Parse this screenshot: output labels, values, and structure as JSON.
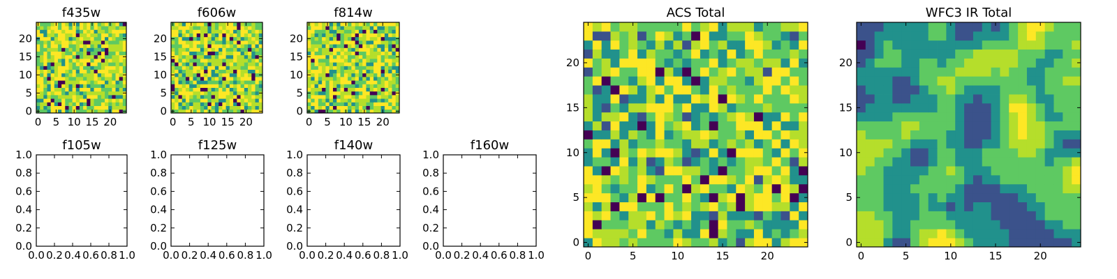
{
  "colormap": [
    "#440154",
    "#3b528b",
    "#21918c",
    "#5ec962",
    "#b5de2b",
    "#fde725"
  ],
  "chart_data": [
    {
      "type": "heatmap",
      "title": "f435w",
      "grid_size": 25,
      "xlim": [
        -0.5,
        24.5
      ],
      "ylim": [
        -0.5,
        24.5
      ],
      "xticks": [
        "0",
        "5",
        "10",
        "15",
        "20"
      ],
      "yticks": [
        "0",
        "5",
        "10",
        "15",
        "20"
      ],
      "pattern": "noisy-bright",
      "seed": 11
    },
    {
      "type": "heatmap",
      "title": "f606w",
      "grid_size": 25,
      "xlim": [
        -0.5,
        24.5
      ],
      "ylim": [
        -0.5,
        24.5
      ],
      "xticks": [
        "0",
        "5",
        "10",
        "15",
        "20"
      ],
      "yticks": [
        "0",
        "5",
        "10",
        "15",
        "20"
      ],
      "pattern": "noisy-bright",
      "seed": 23
    },
    {
      "type": "heatmap",
      "title": "f814w",
      "grid_size": 25,
      "xlim": [
        -0.5,
        24.5
      ],
      "ylim": [
        -0.5,
        24.5
      ],
      "xticks": [
        "0",
        "5",
        "10",
        "15",
        "20"
      ],
      "yticks": [
        "0",
        "5",
        "10",
        "15",
        "20"
      ],
      "pattern": "noisy-bright",
      "seed": 37
    },
    {
      "type": "empty",
      "title": "f105w",
      "xlim": [
        0,
        1
      ],
      "ylim": [
        0,
        1
      ],
      "xticks": [
        "0.0",
        "0.2",
        "0.4",
        "0.6",
        "0.8",
        "1.0"
      ],
      "yticks": [
        "0.0",
        "0.2",
        "0.4",
        "0.6",
        "0.8",
        "1.0"
      ]
    },
    {
      "type": "empty",
      "title": "f125w",
      "xlim": [
        0,
        1
      ],
      "ylim": [
        0,
        1
      ],
      "xticks": [
        "0.0",
        "0.2",
        "0.4",
        "0.6",
        "0.8",
        "1.0"
      ],
      "yticks": [
        "0.0",
        "0.2",
        "0.4",
        "0.6",
        "0.8",
        "1.0"
      ]
    },
    {
      "type": "empty",
      "title": "f140w",
      "xlim": [
        0,
        1
      ],
      "ylim": [
        0,
        1
      ],
      "xticks": [
        "0.0",
        "0.2",
        "0.4",
        "0.6",
        "0.8",
        "1.0"
      ],
      "yticks": [
        "0.0",
        "0.2",
        "0.4",
        "0.6",
        "0.8",
        "1.0"
      ]
    },
    {
      "type": "empty",
      "title": "f160w",
      "xlim": [
        0,
        1
      ],
      "ylim": [
        0,
        1
      ],
      "xticks": [
        "0.0",
        "0.2",
        "0.4",
        "0.6",
        "0.8",
        "1.0"
      ],
      "yticks": [
        "0.0",
        "0.2",
        "0.4",
        "0.6",
        "0.8",
        "1.0"
      ]
    },
    {
      "type": "heatmap",
      "title": "ACS Total",
      "grid_size": 25,
      "xlim": [
        -0.5,
        24.5
      ],
      "ylim": [
        -0.5,
        24.5
      ],
      "xticks": [
        "0",
        "5",
        "10",
        "15",
        "20"
      ],
      "yticks": [
        "0",
        "5",
        "10",
        "15",
        "20"
      ],
      "pattern": "noisy",
      "seed": 51
    },
    {
      "type": "heatmap",
      "title": "WFC3 IR Total",
      "grid_size": 25,
      "xlim": [
        -0.5,
        24.5
      ],
      "ylim": [
        -0.5,
        24.5
      ],
      "xticks": [
        "0",
        "5",
        "10",
        "15",
        "20"
      ],
      "yticks": [
        "0",
        "5",
        "10",
        "15",
        "20"
      ],
      "pattern": "smooth",
      "seed": 73
    }
  ]
}
